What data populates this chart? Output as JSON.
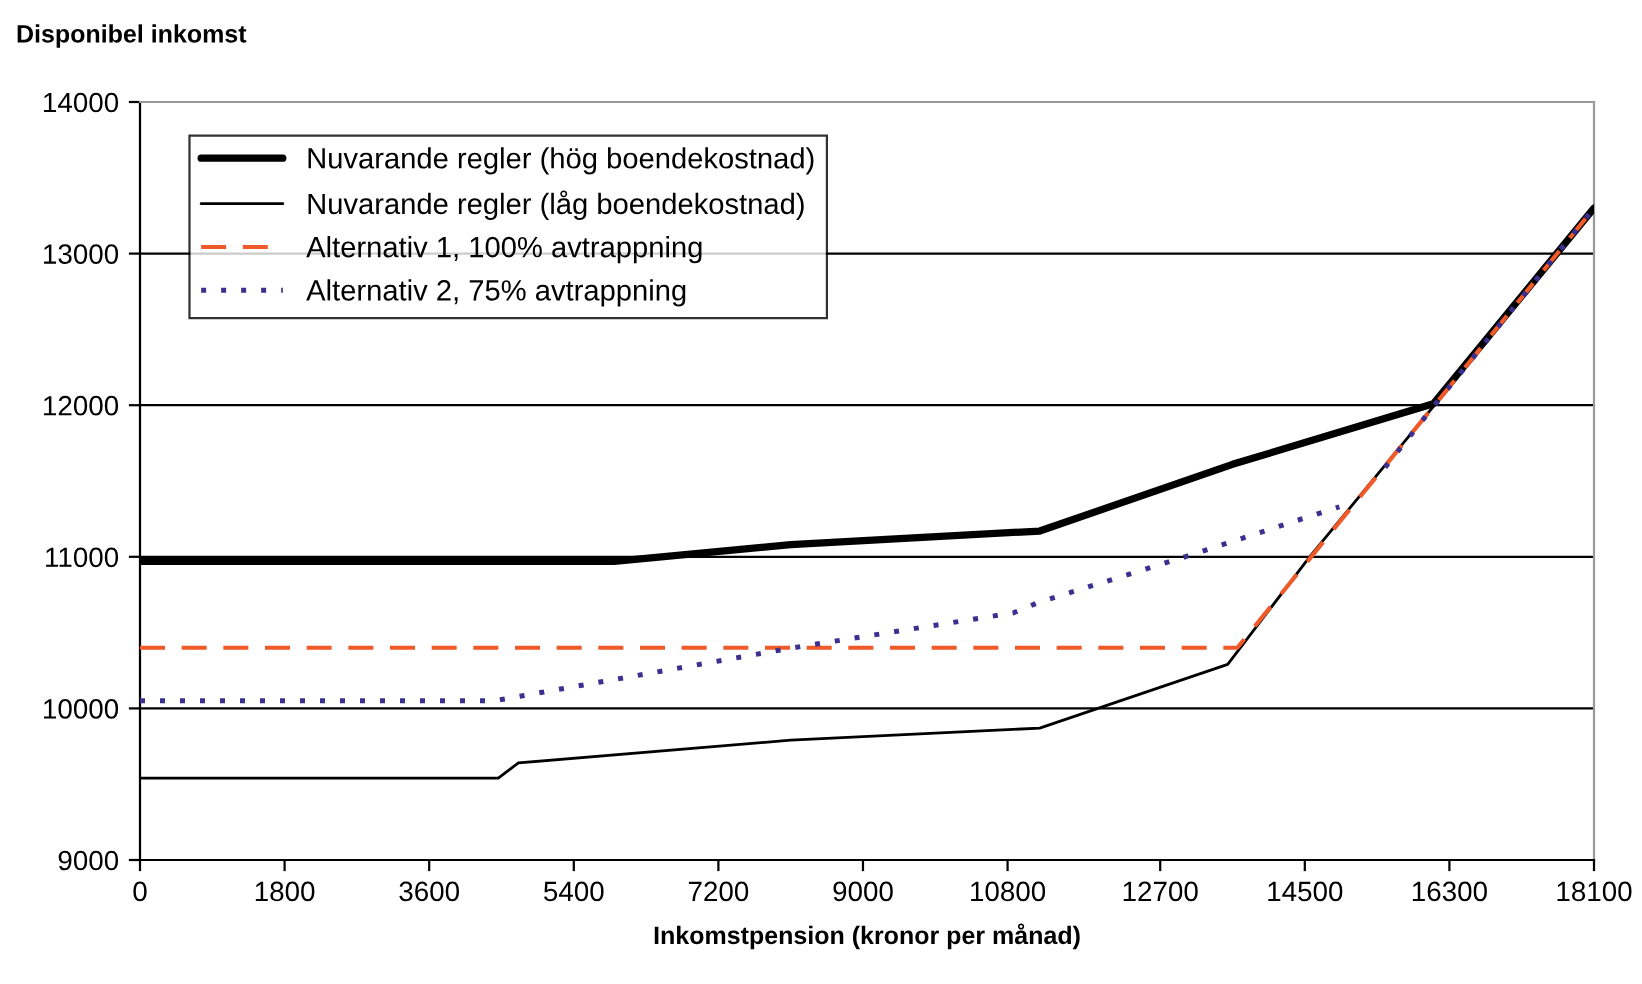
{
  "chart_data": {
    "type": "line",
    "ylabel": "Disponibel inkomst",
    "xlabel": "Inkomstpension (kronor per månad)",
    "xlim": [
      0,
      18100
    ],
    "xticks": [
      0,
      1800,
      3600,
      5400,
      7200,
      9000,
      10800,
      12700,
      14500,
      16300,
      18100
    ],
    "ylim": [
      9000,
      14000
    ],
    "yticks": [
      9000,
      10000,
      11000,
      12000,
      13000,
      14000
    ],
    "grid": "y",
    "legend": "top left",
    "marker": "none",
    "series": [
      {
        "name": "Nuvarande regler (hög boendekostnad)",
        "color": "#000000",
        "line_style": "solid",
        "x": [
          0,
          5900,
          8100,
          11200,
          13600,
          16100,
          18100
        ],
        "values": [
          10970,
          10970,
          11080,
          11170,
          11610,
          12010,
          13300
        ]
      },
      {
        "name": "Nuvarande regler (låg boendekostnad)",
        "color": "#000000",
        "line_style": "solid",
        "x": [
          0,
          4460,
          4710,
          8100,
          11200,
          13540,
          14560,
          16130,
          18100
        ],
        "values": [
          9540,
          9540,
          9640,
          9790,
          9870,
          10290,
          11000,
          12010,
          13300
        ]
      },
      {
        "name": "Alternativ 1, 100% avtrappning",
        "color": "#f05a28",
        "line_style": "dashed",
        "x": [
          0,
          13660,
          16130,
          18100
        ],
        "values": [
          10400,
          10400,
          12010,
          13300
        ]
      },
      {
        "name": "Alternativ 2, 75% avtrappning",
        "color": "#3b2f8f",
        "line_style": "dotted",
        "x": [
          0,
          4410,
          8130,
          10870,
          11190,
          13010,
          14930,
          15200,
          15500,
          16130,
          18100
        ],
        "values": [
          10050,
          10050,
          10400,
          10630,
          10700,
          11000,
          11330,
          null,
          11590,
          12010,
          13300
        ]
      }
    ]
  }
}
